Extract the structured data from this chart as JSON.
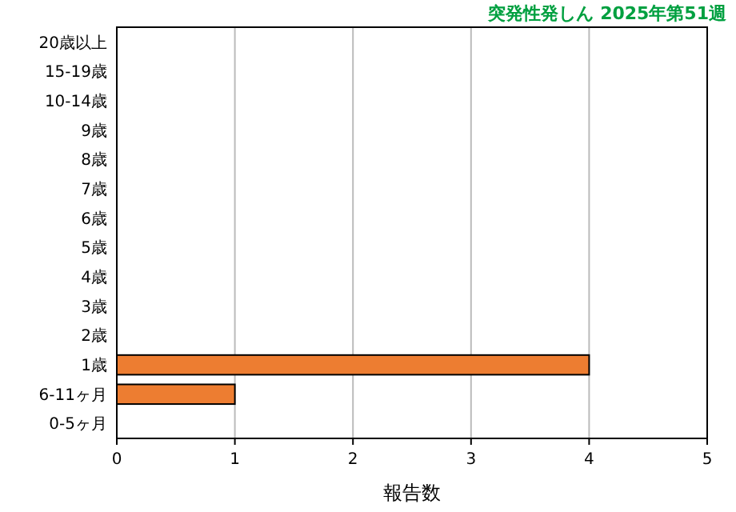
{
  "chart_data": {
    "type": "bar",
    "orientation": "horizontal",
    "title": "突発性発しん 2025年第51週",
    "xlabel": "報告数",
    "categories": [
      "20歳以上",
      "15-19歳",
      "10-14歳",
      "9歳",
      "8歳",
      "7歳",
      "6歳",
      "5歳",
      "4歳",
      "3歳",
      "2歳",
      "1歳",
      "6-11ヶ月",
      "0-5ヶ月"
    ],
    "values": [
      0,
      0,
      0,
      0,
      0,
      0,
      0,
      0,
      0,
      0,
      0,
      4,
      1,
      0
    ],
    "color": "#ed7d31",
    "xlim": [
      0,
      5
    ],
    "xticks": [
      0,
      1,
      2,
      3,
      4,
      5
    ],
    "grid": "x"
  }
}
